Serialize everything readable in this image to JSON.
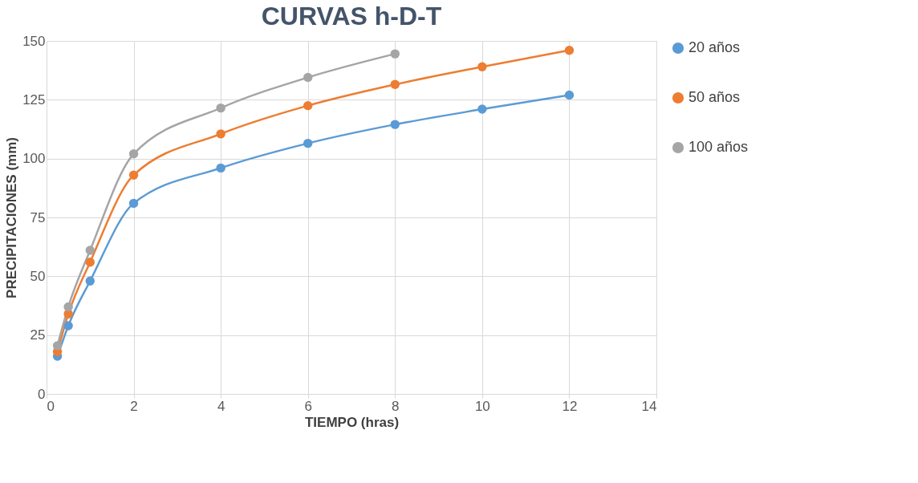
{
  "chart_data": {
    "type": "line",
    "title": "CURVAS h-D-T",
    "xlabel": "TIEMPO (hras)",
    "ylabel": "PRECIPITACIONES (mm)",
    "x": [
      0.25,
      0.5,
      1,
      2,
      4,
      6,
      8,
      10,
      12
    ],
    "series": [
      {
        "name": "20 años",
        "color": "#5b9bd5",
        "values": [
          16,
          29,
          48,
          81,
          96,
          106.5,
          114.5,
          121,
          127
        ]
      },
      {
        "name": "50 años",
        "color": "#ed7d31",
        "values": [
          18,
          34,
          56,
          93,
          110.5,
          122.5,
          131.5,
          139,
          146
        ]
      },
      {
        "name": "100 años",
        "color": "#a5a5a5",
        "values": [
          20.5,
          37,
          61,
          102,
          121.5,
          134.5,
          144.5,
          null,
          null
        ]
      }
    ],
    "xlim": [
      0,
      14
    ],
    "xticks": [
      0,
      2,
      4,
      6,
      8,
      10,
      12,
      14
    ],
    "ylim": [
      0,
      150
    ],
    "yticks": [
      0,
      25,
      50,
      75,
      100,
      125,
      150
    ],
    "grid": true,
    "legend": "right",
    "marker": "circle"
  }
}
